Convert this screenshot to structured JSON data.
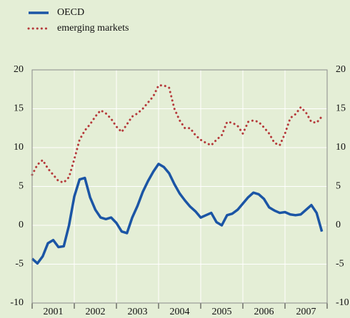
{
  "chart_data": {
    "type": "line",
    "categories": [
      "2001",
      "2002",
      "2003",
      "2004",
      "2005",
      "2006",
      "2007"
    ],
    "x": [
      2001,
      2001.125,
      2001.25,
      2001.375,
      2001.5,
      2001.625,
      2001.75,
      2001.875,
      2002,
      2002.125,
      2002.25,
      2002.375,
      2002.5,
      2002.625,
      2002.75,
      2002.875,
      2003,
      2003.125,
      2003.25,
      2003.375,
      2003.5,
      2003.625,
      2003.75,
      2003.875,
      2004,
      2004.125,
      2004.25,
      2004.375,
      2004.5,
      2004.625,
      2004.75,
      2004.875,
      2005,
      2005.125,
      2005.25,
      2005.375,
      2005.5,
      2005.625,
      2005.75,
      2005.875,
      2006,
      2006.125,
      2006.25,
      2006.375,
      2006.5,
      2006.625,
      2006.75,
      2006.875,
      2007,
      2007.125,
      2007.25,
      2007.375,
      2007.5,
      2007.625,
      2007.75,
      2007.875
    ],
    "series": [
      {
        "name": "OECD",
        "color": "#1b55a5",
        "style": "solid",
        "values": [
          -4.3,
          -4.9,
          -4.0,
          -2.3,
          -1.9,
          -2.8,
          -2.7,
          0.0,
          3.7,
          5.9,
          6.1,
          3.6,
          2.0,
          1.0,
          0.8,
          1.0,
          0.3,
          -0.8,
          -1.0,
          1.0,
          2.5,
          4.3,
          5.7,
          6.9,
          7.9,
          7.5,
          6.7,
          5.3,
          4.1,
          3.2,
          2.4,
          1.8,
          1.0,
          1.3,
          1.6,
          0.4,
          0.0,
          1.3,
          1.5,
          2.0,
          2.8,
          3.6,
          4.2,
          4.0,
          3.4,
          2.3,
          1.9,
          1.6,
          1.7,
          1.4,
          1.3,
          1.4,
          2.0,
          2.6,
          1.6,
          -0.8
        ]
      },
      {
        "name": "emerging markets",
        "color": "#b5393a",
        "style": "dotted",
        "values": [
          6.5,
          7.8,
          8.4,
          7.3,
          6.5,
          5.7,
          5.5,
          6.2,
          8.5,
          11.0,
          12.2,
          13.0,
          14.0,
          14.8,
          14.4,
          13.7,
          12.7,
          12.0,
          13.0,
          14.0,
          14.4,
          15.0,
          15.8,
          16.6,
          18.0,
          18.0,
          17.7,
          15.0,
          13.5,
          12.5,
          12.5,
          11.6,
          11.0,
          10.6,
          10.3,
          11.0,
          11.6,
          13.3,
          13.2,
          12.8,
          11.8,
          13.3,
          13.5,
          13.3,
          12.6,
          11.8,
          10.6,
          10.3,
          11.8,
          13.8,
          14.3,
          15.2,
          14.5,
          13.3,
          13.2,
          14.0
        ]
      }
    ],
    "xlim": [
      2001,
      2008
    ],
    "xticks": [
      2001,
      2002,
      2003,
      2004,
      2005,
      2006,
      2007,
      2008
    ],
    "ylim": [
      -10,
      20
    ],
    "yticks": [
      -10,
      -5,
      0,
      5,
      10,
      15,
      20
    ],
    "y2lim": [
      -10,
      20
    ],
    "y2ticks": [
      -10,
      -5,
      0,
      5,
      10,
      15,
      20
    ],
    "grid": true,
    "legend": "top-left"
  }
}
